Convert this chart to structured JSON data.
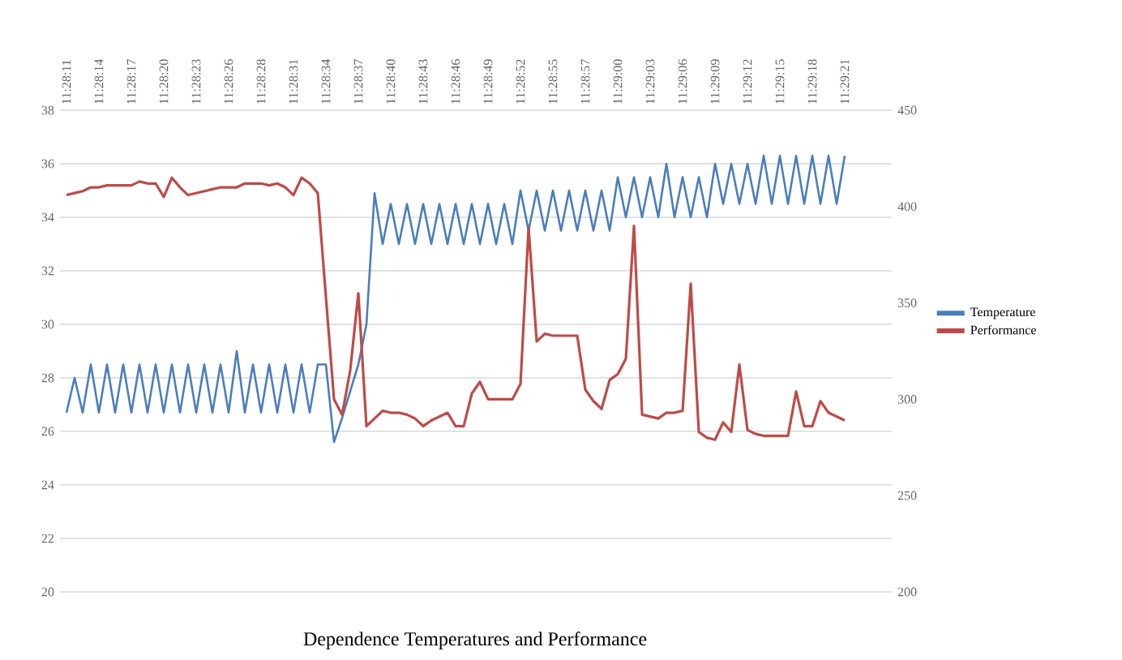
{
  "chart_data": {
    "type": "line",
    "title": "Dependence Temperatures and Performance",
    "categories": [
      "11:28:11",
      null,
      null,
      null,
      "11:28:14",
      null,
      null,
      null,
      "11:28:17",
      null,
      null,
      null,
      "11:28:20",
      null,
      null,
      null,
      "11:28:23",
      null,
      null,
      null,
      "11:28:26",
      null,
      null,
      null,
      "11:28:28",
      null,
      null,
      null,
      "11:28:31",
      null,
      null,
      null,
      "11:28:34",
      null,
      null,
      null,
      "11:28:37",
      null,
      null,
      null,
      "11:28:40",
      null,
      null,
      null,
      "11:28:43",
      null,
      null,
      null,
      "11:28:46",
      null,
      null,
      null,
      "11:28:49",
      null,
      null,
      null,
      "11:28:52",
      null,
      null,
      null,
      "11:28:55",
      null,
      null,
      null,
      "11:28:57",
      null,
      null,
      null,
      "11:29:00",
      null,
      null,
      null,
      "11:29:03",
      null,
      null,
      null,
      "11:29:06",
      null,
      null,
      null,
      "11:29:09",
      null,
      null,
      null,
      "11:29:12",
      null,
      null,
      null,
      "11:29:15",
      null,
      null,
      null,
      "11:29:18",
      null,
      null,
      null,
      "11:29:21"
    ],
    "series": [
      {
        "name": "Temperature",
        "color": "#4a7ebb",
        "values": [
          26.7,
          28.0,
          26.7,
          28.5,
          26.7,
          28.5,
          26.7,
          28.5,
          26.7,
          28.5,
          26.7,
          28.5,
          26.7,
          28.5,
          26.7,
          28.5,
          26.7,
          28.5,
          26.7,
          28.5,
          26.7,
          29.0,
          26.7,
          28.5,
          26.7,
          28.5,
          26.7,
          28.5,
          26.7,
          28.5,
          26.7,
          28.5,
          28.5,
          25.6,
          26.5,
          27.5,
          28.5,
          30.0,
          34.9,
          33.0,
          34.5,
          33.0,
          34.5,
          33.0,
          34.5,
          33.0,
          34.5,
          33.0,
          34.5,
          33.0,
          34.5,
          33.0,
          34.5,
          33.0,
          34.5,
          33.0,
          35.0,
          33.5,
          35.0,
          33.5,
          35.0,
          33.5,
          35.0,
          33.5,
          35.0,
          33.5,
          35.0,
          33.5,
          35.5,
          34.0,
          35.5,
          34.0,
          35.5,
          34.0,
          36.0,
          34.0,
          35.5,
          34.0,
          35.5,
          34.0,
          36.0,
          34.5,
          36.0,
          34.5,
          36.0,
          34.5,
          36.3,
          34.5,
          36.3,
          34.5,
          36.3,
          34.5,
          36.3,
          34.5,
          36.3,
          34.5,
          36.3
        ]
      },
      {
        "name": "Performance",
        "color": "#be4b48",
        "axis": "y2",
        "values": [
          406,
          407,
          408,
          410,
          410,
          411,
          411,
          411,
          411,
          413,
          412,
          412,
          405,
          415,
          410,
          406,
          407,
          408,
          409,
          410,
          410,
          410,
          412,
          412,
          412,
          411,
          412,
          410,
          406,
          415,
          412,
          407,
          353,
          300,
          292,
          315,
          355,
          286,
          290,
          294,
          293,
          293,
          292,
          290,
          286,
          289,
          291,
          293,
          286,
          286,
          303,
          309,
          300,
          300,
          300,
          300,
          308,
          389,
          330,
          334,
          333,
          333,
          333,
          333,
          305,
          299,
          295,
          310,
          313,
          321,
          390,
          292,
          291,
          290,
          293,
          293,
          294,
          360,
          283,
          280,
          279,
          288,
          283,
          318,
          284,
          282,
          281,
          281,
          281,
          281,
          304,
          286,
          286,
          299,
          293,
          291,
          289
        ]
      }
    ],
    "ylim": [
      20,
      38
    ],
    "yticks": [
      20,
      22,
      24,
      26,
      28,
      30,
      32,
      34,
      36,
      38
    ],
    "y2lim": [
      200,
      450
    ],
    "y2ticks": [
      200,
      250,
      300,
      350,
      400,
      450
    ],
    "grid": "y",
    "legend": "right",
    "marker": "none",
    "line_style": "solid"
  }
}
